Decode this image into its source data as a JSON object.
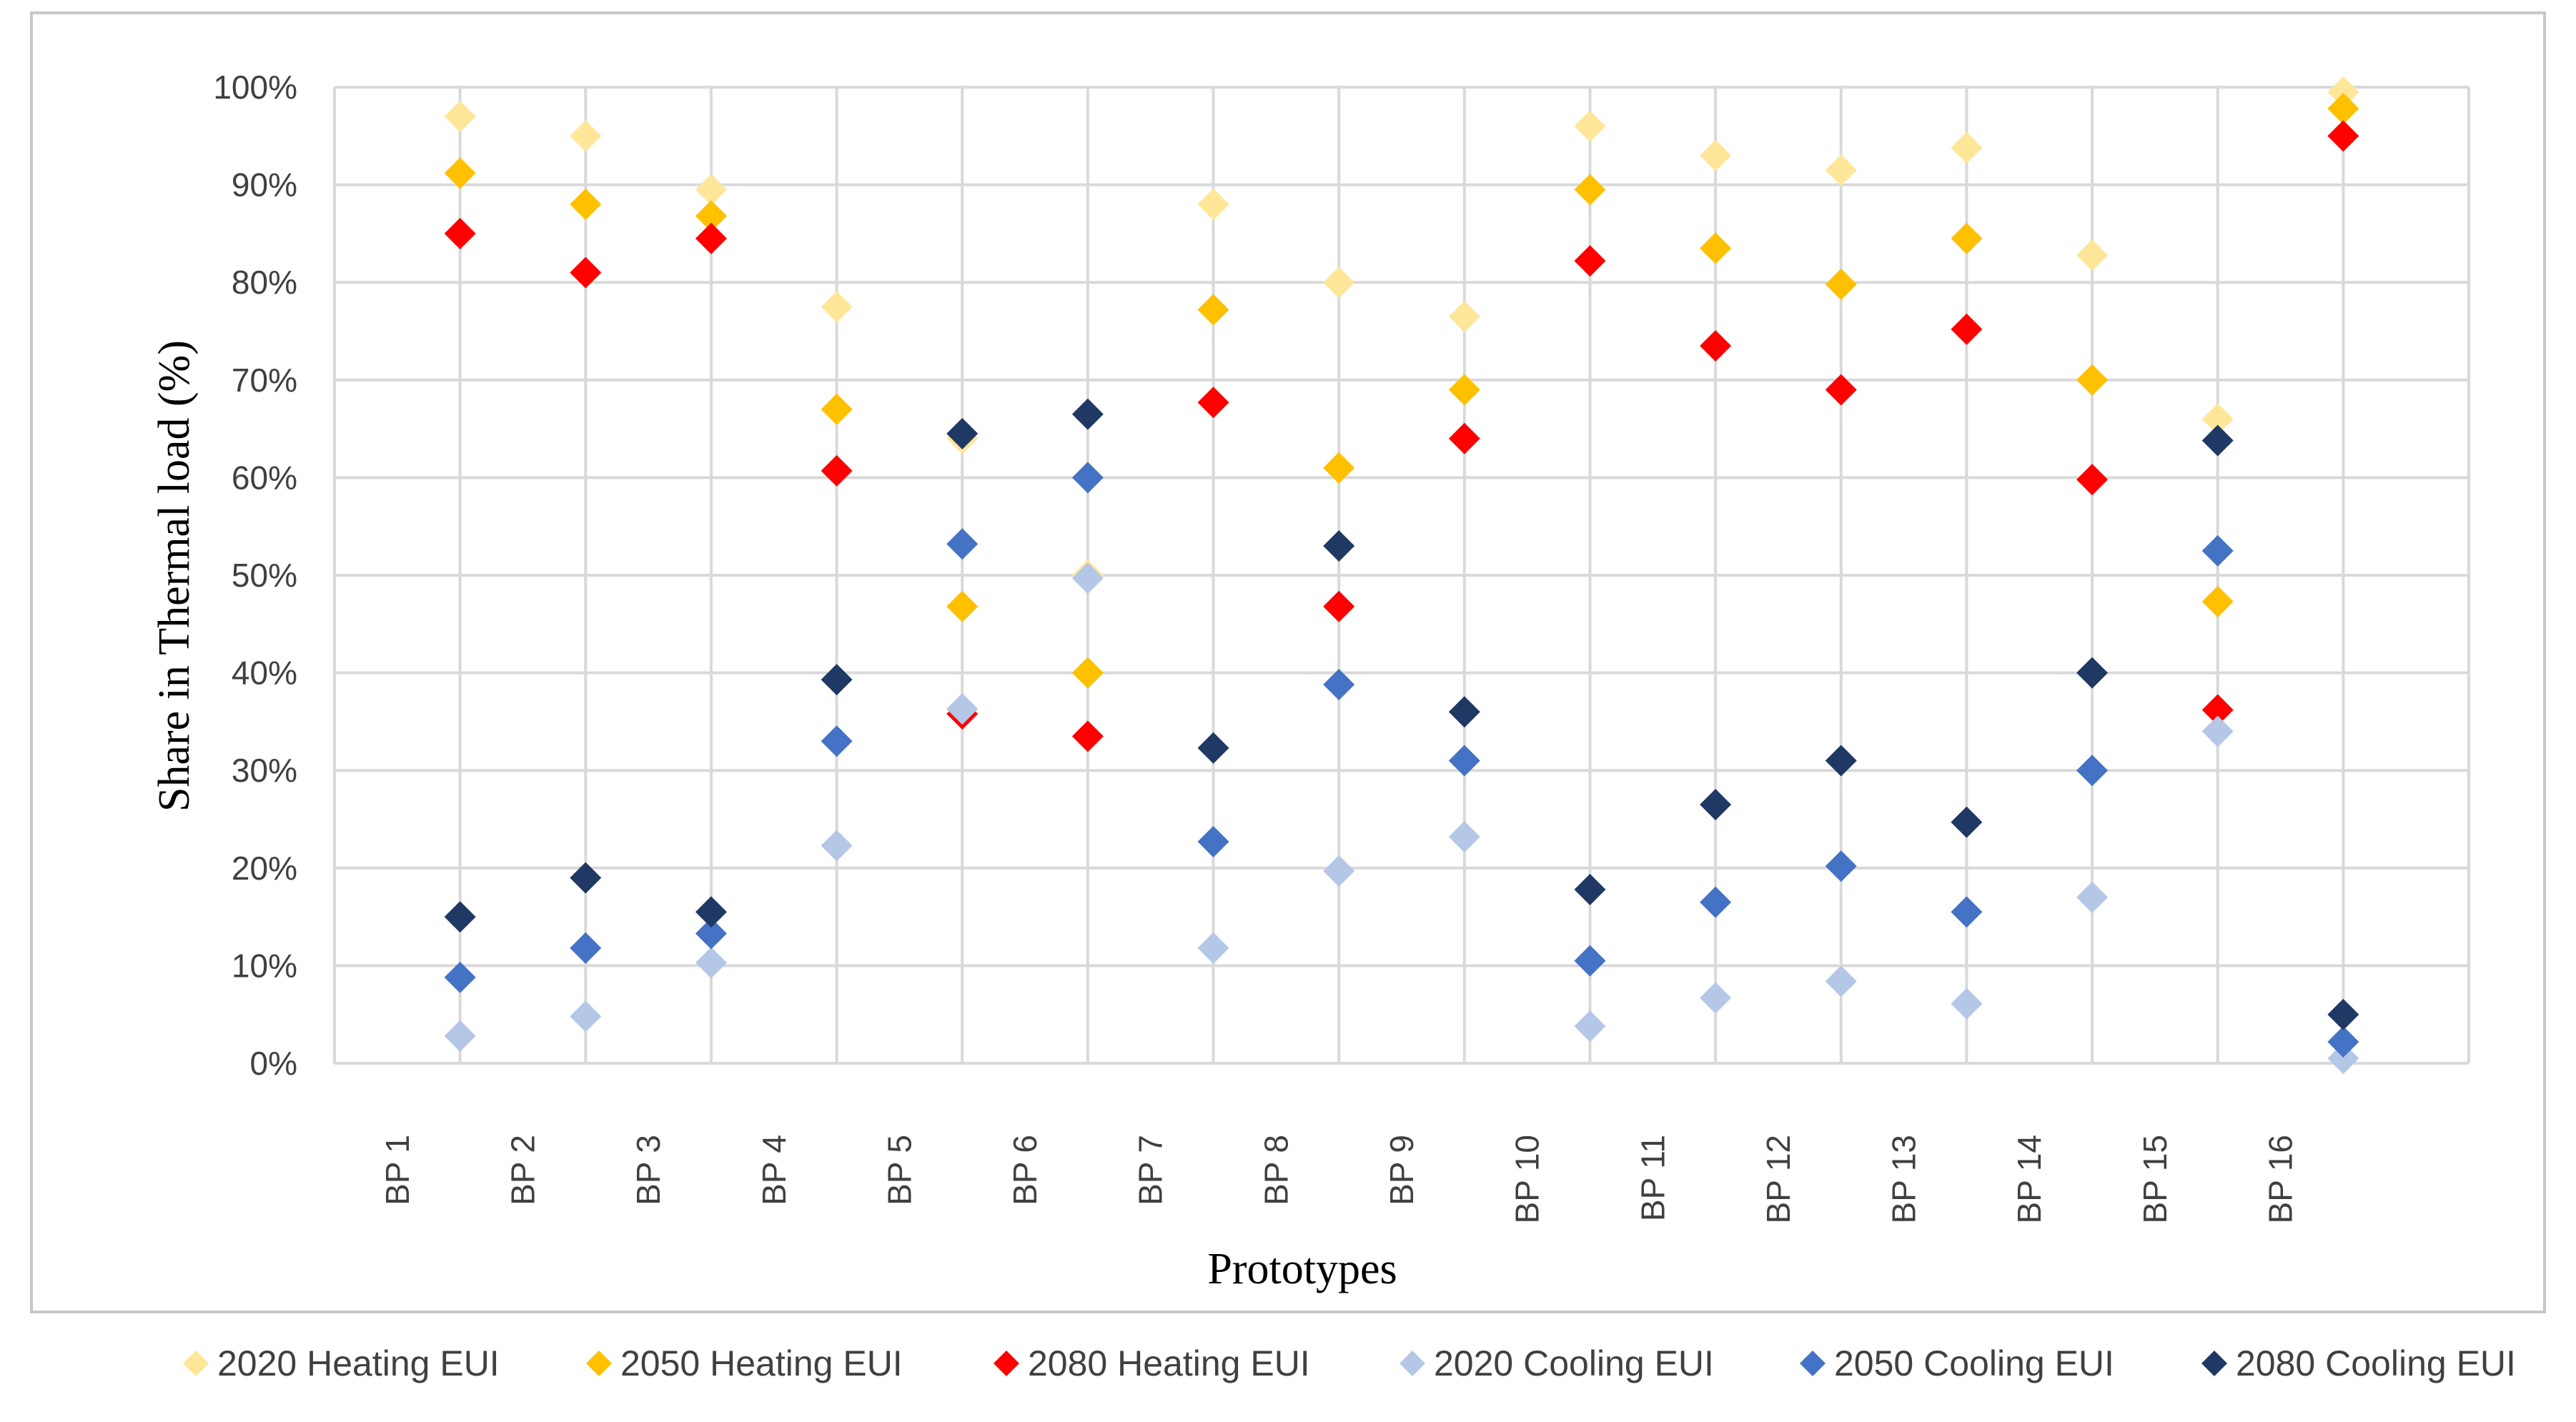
{
  "chart_data": {
    "type": "scatter",
    "title": "",
    "xlabel": "Prototypes",
    "ylabel": "Share in Thermal load (%)",
    "ylim": [
      0,
      100
    ],
    "yticks": [
      "0%",
      "10%",
      "20%",
      "30%",
      "40%",
      "50%",
      "60%",
      "70%",
      "80%",
      "90%",
      "100%"
    ],
    "grid": true,
    "legend_position": "bottom",
    "categories": [
      "BP 1",
      "BP 2",
      "BP 3",
      "BP 4",
      "BP 5",
      "BP 6",
      "BP 7",
      "BP 8",
      "BP 9",
      "BP 10",
      "BP 11",
      "BP 12",
      "BP 13",
      "BP 14",
      "BP 15",
      "BP 16"
    ],
    "series": [
      {
        "name": "2020 Heating EUI",
        "color": "#FFE699",
        "values": [
          97,
          95,
          89.5,
          77.5,
          64,
          50,
          88,
          80,
          76.5,
          96,
          93,
          91.5,
          93.8,
          82.8,
          66,
          99.5
        ]
      },
      {
        "name": "2050 Heating EUI",
        "color": "#FFC000",
        "values": [
          91.2,
          88,
          86.8,
          67,
          46.8,
          40,
          77.2,
          61,
          69,
          89.5,
          83.5,
          79.8,
          84.5,
          70,
          47.3,
          97.8
        ]
      },
      {
        "name": "2080 Heating EUI",
        "color": "#FF0000",
        "values": [
          85,
          81,
          84.5,
          60.7,
          35.8,
          33.5,
          67.7,
          46.8,
          64,
          82.2,
          73.5,
          69,
          75.2,
          59.8,
          36.2,
          95
        ]
      },
      {
        "name": "2020 Cooling EUI",
        "color": "#B4C7E7",
        "values": [
          2.8,
          4.8,
          10.3,
          22.3,
          36.3,
          49.7,
          11.8,
          19.7,
          23.2,
          3.8,
          6.7,
          8.4,
          6.1,
          17,
          34,
          0.5
        ]
      },
      {
        "name": "2050 Cooling EUI",
        "color": "#4472C4",
        "values": [
          8.8,
          11.8,
          13.3,
          33,
          53.2,
          60,
          22.7,
          38.8,
          31,
          10.5,
          16.5,
          20.2,
          15.5,
          30,
          52.5,
          2.2
        ]
      },
      {
        "name": "2080 Cooling EUI",
        "color": "#203864",
        "values": [
          15,
          19,
          15.5,
          39.3,
          64.5,
          66.5,
          32.3,
          53,
          36,
          17.8,
          26.5,
          31,
          24.7,
          40,
          63.8,
          5
        ]
      }
    ]
  }
}
